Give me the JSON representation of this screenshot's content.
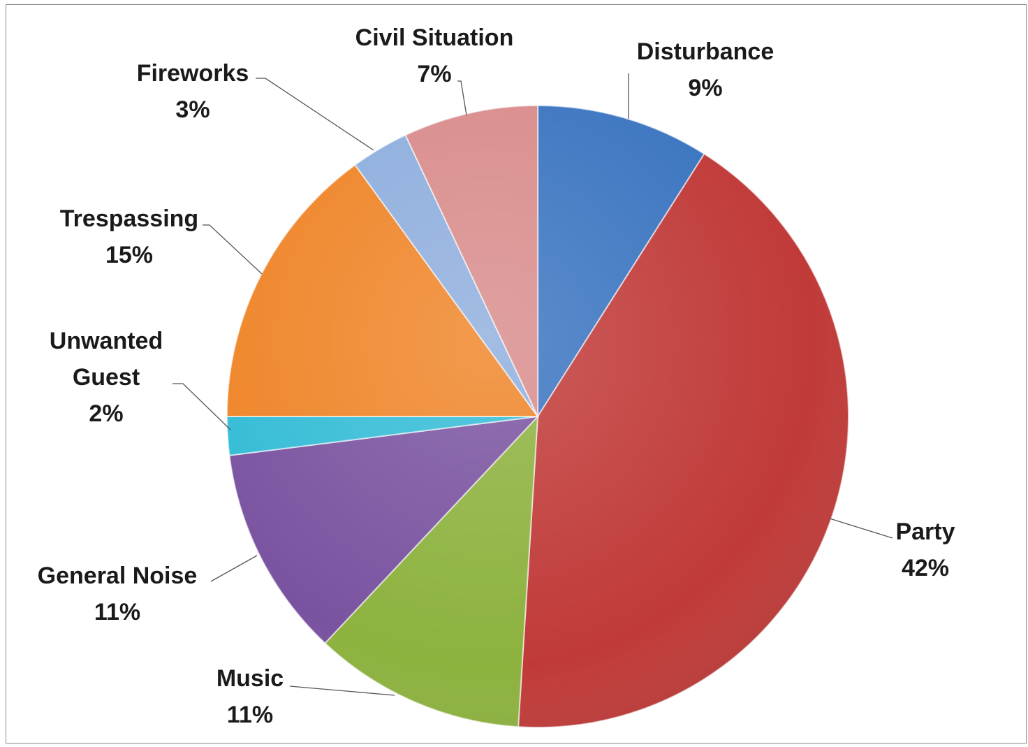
{
  "chart_data": {
    "type": "pie",
    "title": "",
    "start_angle_deg": 0,
    "direction": "clockwise",
    "legend": "none",
    "slices": [
      {
        "label": "Disturbance",
        "value": 9,
        "value_label": "9%",
        "color": "#3a74c0"
      },
      {
        "label": "Party",
        "value": 42,
        "value_label": "42%",
        "color": "#c03a38"
      },
      {
        "label": "Music",
        "value": 11,
        "value_label": "11%",
        "color": "#8db23e"
      },
      {
        "label": "General Noise",
        "value": 11,
        "value_label": "11%",
        "color": "#7a53a0"
      },
      {
        "label": "Unwanted Guest",
        "label_lines": [
          "Unwanted",
          "Guest"
        ],
        "value": 2,
        "value_label": "2%",
        "color": "#33bcd6"
      },
      {
        "label": "Trespassing",
        "value": 15,
        "value_label": "15%",
        "color": "#ef8427"
      },
      {
        "label": "Fireworks",
        "value": 3,
        "value_label": "3%",
        "color": "#8eaedd"
      },
      {
        "label": "Civil Situation",
        "value": 7,
        "value_label": "7%",
        "color": "#d98b8b"
      }
    ]
  }
}
